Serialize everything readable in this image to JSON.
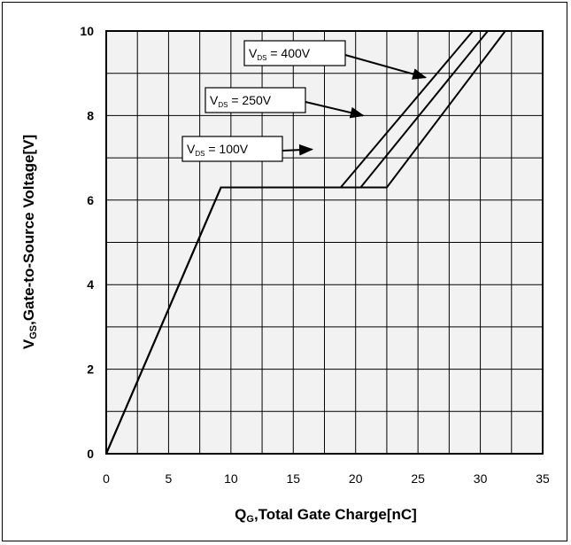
{
  "chart_data": {
    "type": "line",
    "xlabel_main": "Q",
    "xlabel_sub": "G",
    "xlabel_rest": ",Total Gate Charge[nC]",
    "ylabel_main": "V",
    "ylabel_sub": "GS",
    "ylabel_rest": ",Gate-to-Source Voltage[V]",
    "xlim": [
      0,
      35
    ],
    "ylim": [
      0,
      10
    ],
    "x_ticks": [
      0,
      5,
      10,
      15,
      20,
      25,
      30,
      35
    ],
    "y_ticks": [
      0,
      2,
      4,
      6,
      8,
      10
    ],
    "grid": true,
    "series": [
      {
        "name": "VDS = 100V",
        "label_main": "V",
        "label_sub": "DS",
        "label_rest": " = 100V",
        "x": [
          0,
          9.2,
          18.8,
          29.4
        ],
        "y": [
          0,
          6.3,
          6.3,
          10
        ]
      },
      {
        "name": "VDS = 250V",
        "label_main": "V",
        "label_sub": "DS",
        "label_rest": " = 250V",
        "x": [
          0,
          9.2,
          20.4,
          30.6
        ],
        "y": [
          0,
          6.3,
          6.3,
          10
        ]
      },
      {
        "name": "VDS = 400V",
        "label_main": "V",
        "label_sub": "DS",
        "label_rest": " = 400V",
        "x": [
          0,
          9.2,
          22.5,
          32.0
        ],
        "y": [
          0,
          6.3,
          6.3,
          10
        ]
      }
    ],
    "colors": {
      "line": "#000000",
      "grid": "#000000",
      "background": "#f2f2f2"
    }
  }
}
